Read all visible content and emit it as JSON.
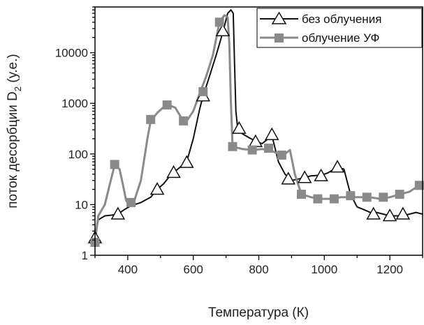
{
  "chart_data": {
    "type": "line",
    "xlabel": "Температура (К)",
    "ylabel": "поток десорбции D",
    "ylabel_sub": "2",
    "ylabel_suffix": " (у.е.)",
    "xlim": [
      300,
      1300
    ],
    "ylim": [
      1,
      80000
    ],
    "yscale": "log",
    "xticks": [
      400,
      600,
      800,
      1000,
      1200
    ],
    "yticks": [
      {
        "value": 1,
        "label": "1"
      },
      {
        "value": 10,
        "label": "10"
      },
      {
        "value": 100,
        "label": "100"
      },
      {
        "value": 1000,
        "label": "1000"
      },
      {
        "value": 10000,
        "label": "10000"
      }
    ],
    "legend_position": "top-right",
    "series": [
      {
        "name": "без облучения",
        "color": "#111111",
        "marker": "triangle-open",
        "line": [
          [
            300,
            2.2
          ],
          [
            310,
            5
          ],
          [
            330,
            6
          ],
          [
            350,
            6.2
          ],
          [
            370,
            6.5
          ],
          [
            390,
            8
          ],
          [
            410,
            9.5
          ],
          [
            440,
            11
          ],
          [
            470,
            14
          ],
          [
            490,
            20
          ],
          [
            510,
            26
          ],
          [
            530,
            38
          ],
          [
            560,
            55
          ],
          [
            580,
            70
          ],
          [
            600,
            200
          ],
          [
            620,
            800
          ],
          [
            630,
            1400
          ],
          [
            650,
            3500
          ],
          [
            670,
            9000
          ],
          [
            690,
            25000
          ],
          [
            705,
            60000
          ],
          [
            715,
            70000
          ],
          [
            722,
            60000
          ],
          [
            726,
            6000
          ],
          [
            730,
            700
          ],
          [
            735,
            350
          ],
          [
            750,
            250
          ],
          [
            770,
            210
          ],
          [
            790,
            180
          ],
          [
            810,
            160
          ],
          [
            840,
            230
          ],
          [
            860,
            70
          ],
          [
            880,
            40
          ],
          [
            900,
            30
          ],
          [
            930,
            33
          ],
          [
            960,
            37
          ],
          [
            990,
            38
          ],
          [
            1010,
            42
          ],
          [
            1040,
            55
          ],
          [
            1060,
            50
          ],
          [
            1080,
            16
          ],
          [
            1100,
            9
          ],
          [
            1120,
            8
          ],
          [
            1140,
            7
          ],
          [
            1160,
            7
          ],
          [
            1180,
            6.5
          ],
          [
            1200,
            6
          ],
          [
            1220,
            6
          ],
          [
            1240,
            6
          ],
          [
            1260,
            6.5
          ],
          [
            1280,
            7
          ],
          [
            1300,
            6.5
          ]
        ],
        "markers": [
          [
            300,
            2.2
          ],
          [
            370,
            6.5
          ],
          [
            490,
            20
          ],
          [
            540,
            43
          ],
          [
            580,
            68
          ],
          [
            630,
            1400
          ],
          [
            690,
            27000
          ],
          [
            740,
            320
          ],
          [
            790,
            175
          ],
          [
            840,
            240
          ],
          [
            890,
            32
          ],
          [
            940,
            34
          ],
          [
            990,
            37
          ],
          [
            1040,
            55
          ],
          [
            1150,
            6.5
          ],
          [
            1200,
            6
          ],
          [
            1240,
            6.5
          ]
        ]
      },
      {
        "name": "облучение УФ",
        "color": "#8a8a8a",
        "marker": "square-filled",
        "line": [
          [
            300,
            1.9
          ],
          [
            310,
            6
          ],
          [
            330,
            10
          ],
          [
            345,
            25
          ],
          [
            360,
            60
          ],
          [
            375,
            50
          ],
          [
            385,
            25
          ],
          [
            395,
            12
          ],
          [
            405,
            10
          ],
          [
            420,
            12
          ],
          [
            440,
            30
          ],
          [
            460,
            200
          ],
          [
            470,
            450
          ],
          [
            490,
            650
          ],
          [
            510,
            850
          ],
          [
            530,
            900
          ],
          [
            545,
            820
          ],
          [
            565,
            500
          ],
          [
            580,
            450
          ],
          [
            600,
            700
          ],
          [
            620,
            1600
          ],
          [
            640,
            3500
          ],
          [
            660,
            9000
          ],
          [
            680,
            40000
          ],
          [
            695,
            55000
          ],
          [
            705,
            50000
          ],
          [
            710,
            15000
          ],
          [
            715,
            1000
          ],
          [
            720,
            140
          ],
          [
            750,
            125
          ],
          [
            780,
            120
          ],
          [
            810,
            125
          ],
          [
            840,
            115
          ],
          [
            860,
            100
          ],
          [
            880,
            100
          ],
          [
            895,
            120
          ],
          [
            910,
            40
          ],
          [
            930,
            16
          ],
          [
            960,
            14
          ],
          [
            990,
            13
          ],
          [
            1020,
            13
          ],
          [
            1050,
            14
          ],
          [
            1080,
            14
          ],
          [
            1110,
            14
          ],
          [
            1140,
            14
          ],
          [
            1170,
            13
          ],
          [
            1200,
            14
          ],
          [
            1230,
            16
          ],
          [
            1260,
            18
          ],
          [
            1290,
            24
          ],
          [
            1300,
            24
          ]
        ],
        "markers": [
          [
            300,
            1.8
          ],
          [
            360,
            62
          ],
          [
            410,
            11
          ],
          [
            470,
            480
          ],
          [
            520,
            930
          ],
          [
            570,
            450
          ],
          [
            630,
            1700
          ],
          [
            680,
            40000
          ],
          [
            720,
            140
          ],
          [
            780,
            120
          ],
          [
            830,
            130
          ],
          [
            870,
            95
          ],
          [
            930,
            16
          ],
          [
            980,
            13
          ],
          [
            1030,
            13
          ],
          [
            1080,
            15
          ],
          [
            1130,
            14
          ],
          [
            1180,
            14
          ],
          [
            1230,
            16
          ],
          [
            1290,
            24
          ]
        ]
      }
    ]
  }
}
